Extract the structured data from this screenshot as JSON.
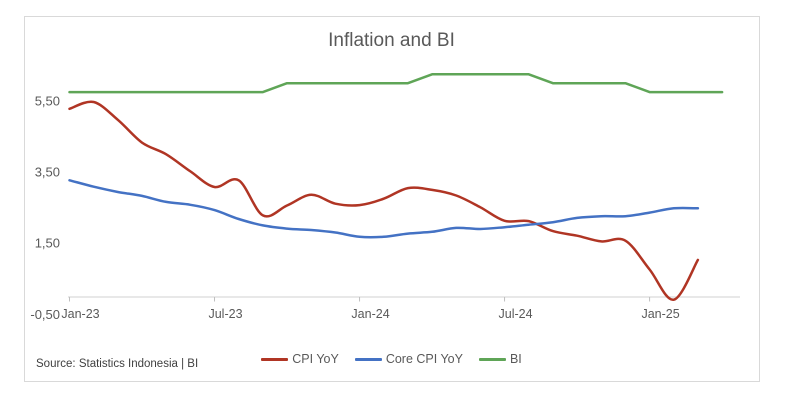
{
  "chart": {
    "title": "Inflation and BI",
    "source_note": "Source: Statistics Indonesia | BI"
  },
  "styles": {
    "background": "#FFFFFF",
    "frame_border": "#D9D9D9",
    "axis_line": "#D0D0D0",
    "tick_mark": "#BFBFBF",
    "axis_text": "#595959",
    "title_text": "#595959",
    "source_text": "#404040",
    "cpi_red": "#B03524",
    "core_blue": "#4472C4",
    "bi_green": "#5FA557"
  },
  "chart_data": {
    "type": "line",
    "title": "Inflation and BI",
    "decimal_separator": ",",
    "grid": false,
    "legend_position": "bottom",
    "ylim": [
      -0.5,
      6.65
    ],
    "x": [
      "Jan-23",
      "Feb-23",
      "Mar-23",
      "Apr-23",
      "May-23",
      "Jun-23",
      "Jul-23",
      "Aug-23",
      "Sep-23",
      "Oct-23",
      "Nov-23",
      "Dec-23",
      "Jan-24",
      "Feb-24",
      "Mar-24",
      "Apr-24",
      "May-24",
      "Jun-24",
      "Jul-24",
      "Aug-24",
      "Sep-24",
      "Oct-24",
      "Nov-24",
      "Dec-24",
      "Jan-25",
      "Feb-25",
      "Mar-25",
      "Apr-25"
    ],
    "x_tick_indices": [
      0,
      6,
      12,
      18,
      24
    ],
    "x_tick_labels": [
      "Jan-23",
      "Jul-23",
      "Jan-24",
      "Jul-24",
      "Jan-25"
    ],
    "y_ticks": [
      {
        "label": "5,50",
        "value": 5.5
      },
      {
        "label": "3,50",
        "value": 3.5
      },
      {
        "label": "1,50",
        "value": 1.5
      },
      {
        "label": "-0,50",
        "value": -0.5
      }
    ],
    "series": [
      {
        "name": "CPI YoY",
        "color": "#B03524",
        "smoothed": true,
        "values": [
          5.28,
          5.47,
          4.97,
          4.33,
          4.0,
          3.52,
          3.08,
          3.27,
          2.28,
          2.56,
          2.86,
          2.61,
          2.57,
          2.75,
          3.05,
          3.0,
          2.84,
          2.51,
          2.13,
          2.12,
          1.84,
          1.71,
          1.55,
          1.57,
          0.76,
          -0.09,
          1.03,
          null
        ]
      },
      {
        "name": "Core CPI YoY",
        "color": "#4472C4",
        "smoothed": true,
        "values": [
          3.27,
          3.09,
          2.94,
          2.83,
          2.66,
          2.58,
          2.43,
          2.18,
          2.0,
          1.91,
          1.87,
          1.8,
          1.68,
          1.68,
          1.77,
          1.82,
          1.93,
          1.9,
          1.95,
          2.02,
          2.09,
          2.21,
          2.26,
          2.26,
          2.36,
          2.48,
          2.48,
          null
        ]
      },
      {
        "name": "BI",
        "color": "#5FA557",
        "smoothed": false,
        "values": [
          5.75,
          5.75,
          5.75,
          5.75,
          5.75,
          5.75,
          5.75,
          5.75,
          5.75,
          6.0,
          6.0,
          6.0,
          6.0,
          6.0,
          6.0,
          6.25,
          6.25,
          6.25,
          6.25,
          6.25,
          6.0,
          6.0,
          6.0,
          6.0,
          5.75,
          5.75,
          5.75,
          5.75
        ]
      }
    ]
  }
}
